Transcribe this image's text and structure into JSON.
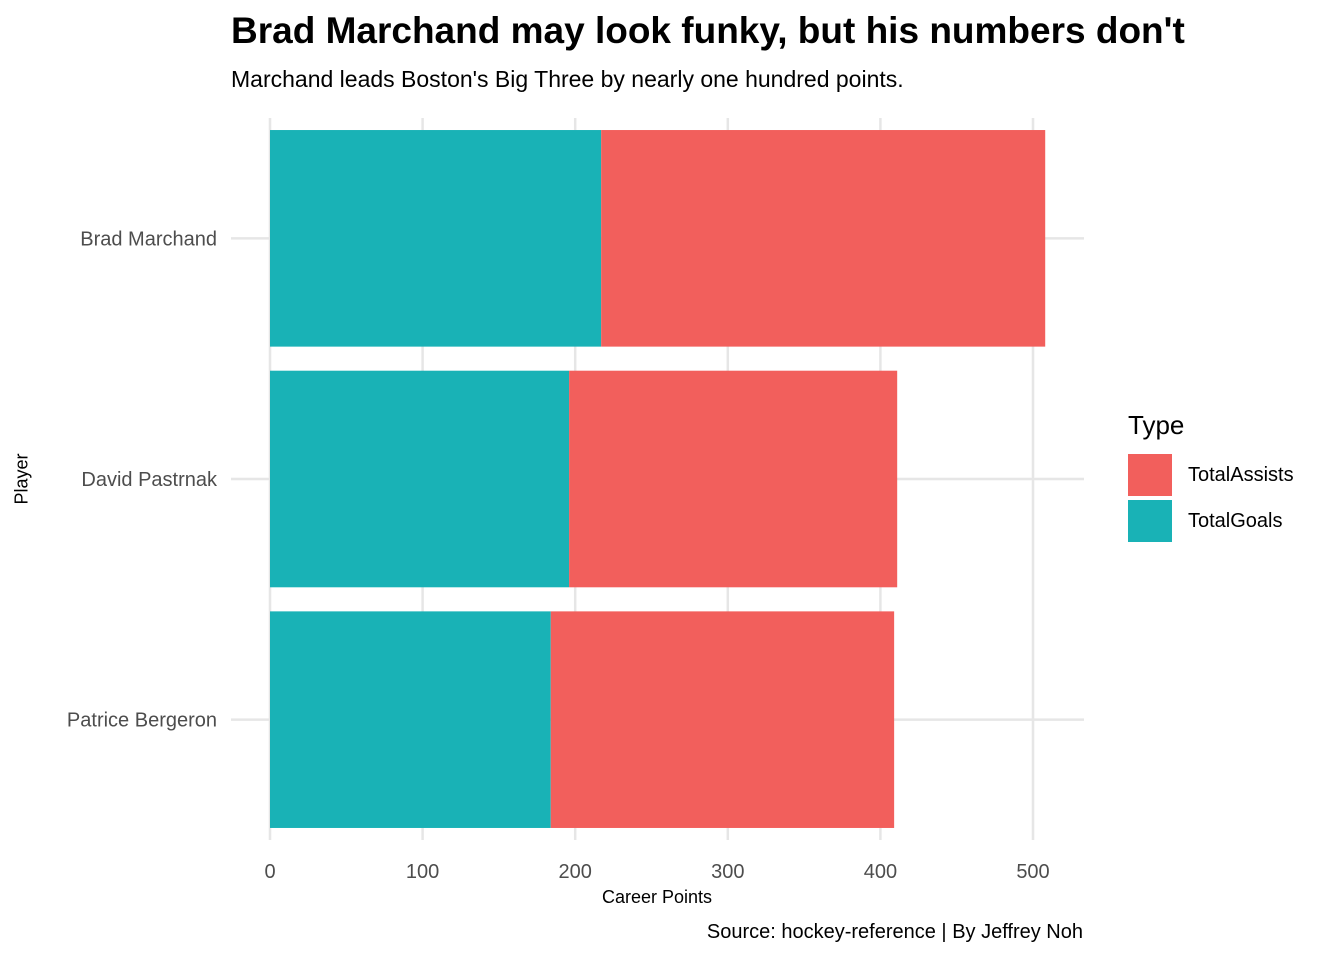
{
  "chart_data": {
    "type": "bar",
    "orientation": "horizontal",
    "stacked": true,
    "title": "Brad Marchand may look funky, but his numbers don't",
    "subtitle": "Marchand leads Boston's Big Three by nearly one hundred points.",
    "caption": "Source: hockey-reference | By Jeffrey Noh",
    "xlabel": "Career Points",
    "ylabel": "Player",
    "categories": [
      "Brad Marchand",
      "David Pastrnak",
      "Patrice Bergeron"
    ],
    "series": [
      {
        "name": "TotalGoals",
        "values": [
          217,
          196,
          184
        ],
        "color": "#19B2B6"
      },
      {
        "name": "TotalAssists",
        "values": [
          291,
          215,
          225
        ],
        "color": "#F25F5C"
      }
    ],
    "xlim": [
      0,
      530
    ],
    "xticks": [
      0,
      100,
      200,
      300,
      400,
      500
    ],
    "grid": true,
    "legend": {
      "title": "Type",
      "position": "right",
      "items": [
        {
          "label": "TotalAssists",
          "color": "#F25F5C"
        },
        {
          "label": "TotalGoals",
          "color": "#19B2B6"
        }
      ]
    }
  }
}
